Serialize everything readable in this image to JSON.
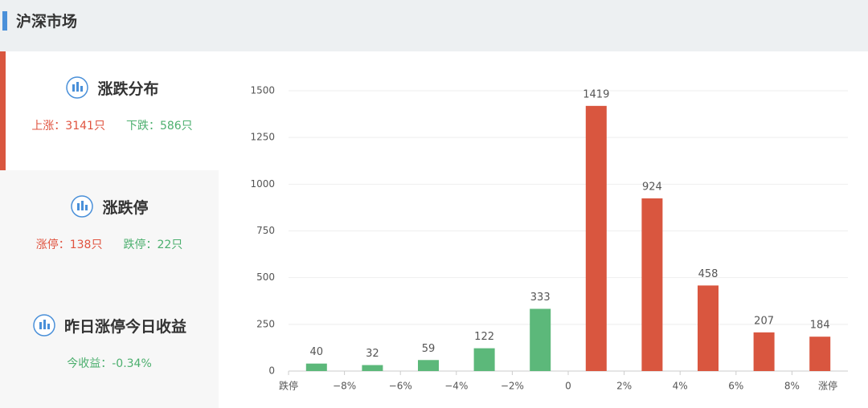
{
  "header": {
    "title": "沪深市场"
  },
  "cards": [
    {
      "title": "涨跌分布",
      "stats": [
        {
          "text": "上涨：3141只",
          "color": "#e0533f"
        },
        {
          "text": "下跌：586只",
          "color": "#4caf6e"
        }
      ]
    },
    {
      "title": "涨跌停",
      "stats": [
        {
          "text": "涨停：138只",
          "color": "#e0533f"
        },
        {
          "text": "跌停：22只",
          "color": "#4caf6e"
        }
      ]
    },
    {
      "title": "昨日涨停今日收益",
      "stats": [
        {
          "text": "今收益：-0.34%",
          "color": "#4caf6e"
        }
      ]
    }
  ],
  "chart_data": {
    "type": "bar",
    "x_labels": [
      "跌停",
      "−8%",
      "−6%",
      "−4%",
      "−2%",
      "0",
      "2%",
      "4%",
      "6%",
      "8%",
      "涨停"
    ],
    "values": [
      40,
      32,
      59,
      122,
      333,
      1419,
      924,
      458,
      207,
      184
    ],
    "colors": [
      "#5cb87a",
      "#5cb87a",
      "#5cb87a",
      "#5cb87a",
      "#5cb87a",
      "#d9563f",
      "#d9563f",
      "#d9563f",
      "#d9563f",
      "#d9563f"
    ],
    "ylim": [
      0,
      1500
    ],
    "yticks": [
      0,
      250,
      500,
      750,
      1000,
      1250,
      1500
    ],
    "grid": true
  }
}
